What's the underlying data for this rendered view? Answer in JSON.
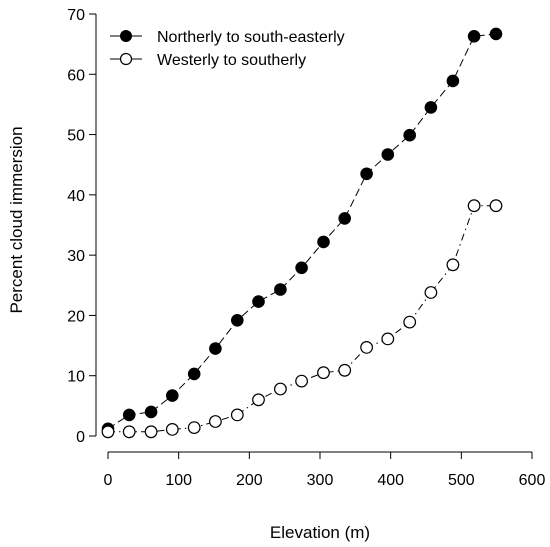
{
  "chart_data": {
    "type": "line",
    "title": "",
    "xlabel": "Elevation (m)",
    "ylabel": "Percent cloud immersion",
    "xlim": [
      0,
      600
    ],
    "ylim": [
      0,
      70
    ],
    "xticks": [
      0,
      100,
      200,
      300,
      400,
      500,
      600
    ],
    "yticks": [
      0,
      10,
      20,
      30,
      40,
      50,
      60,
      70
    ],
    "grid": false,
    "legend_position": "top-left",
    "series": [
      {
        "name": "Northerly to south-easterly",
        "marker": "filled-circle",
        "line_style": "dashed",
        "color": "#000000",
        "x": [
          0,
          30,
          61,
          91,
          122,
          152,
          183,
          213,
          244,
          274,
          305,
          335,
          366,
          396,
          427,
          457,
          488,
          518,
          549
        ],
        "y": [
          1.2,
          3.5,
          4.0,
          6.7,
          10.3,
          14.5,
          19.2,
          22.3,
          24.3,
          27.9,
          32.2,
          36.1,
          43.5,
          46.7,
          49.9,
          54.5,
          58.9,
          66.3,
          66.7
        ]
      },
      {
        "name": "Westerly to southerly",
        "marker": "open-circle",
        "line_style": "dash-dot",
        "color": "#000000",
        "x": [
          0,
          30,
          61,
          91,
          122,
          152,
          183,
          213,
          244,
          274,
          305,
          335,
          366,
          396,
          427,
          457,
          488,
          518,
          549
        ],
        "y": [
          0.7,
          0.7,
          0.7,
          1.1,
          1.4,
          2.4,
          3.5,
          6.0,
          7.8,
          9.1,
          10.5,
          10.9,
          14.7,
          16.1,
          18.9,
          23.8,
          28.4,
          38.2,
          38.2
        ]
      }
    ]
  }
}
